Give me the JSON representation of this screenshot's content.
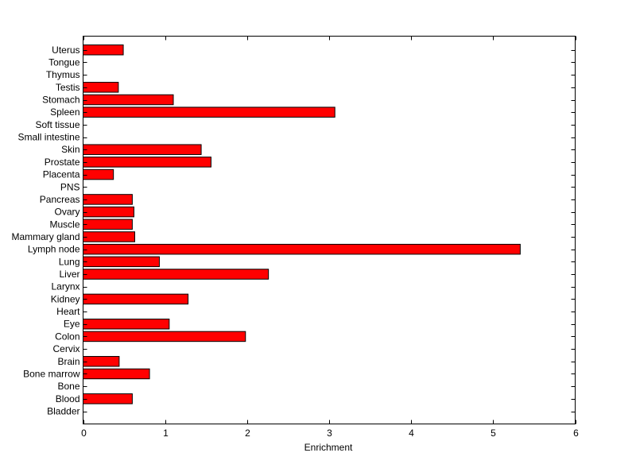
{
  "chart_data": {
    "type": "bar",
    "orientation": "horizontal",
    "categories": [
      "Bladder",
      "Blood",
      "Bone",
      "Bone marrow",
      "Brain",
      "Cervix",
      "Colon",
      "Eye",
      "Heart",
      "Kidney",
      "Larynx",
      "Liver",
      "Lung",
      "Lymph node",
      "Mammary gland",
      "Muscle",
      "Ovary",
      "Pancreas",
      "PNS",
      "Placenta",
      "Prostate",
      "Skin",
      "Small intestine",
      "Soft tissue",
      "Spleen",
      "Stomach",
      "Testis",
      "Thymus",
      "Tongue",
      "Uterus"
    ],
    "values": [
      0,
      0.6,
      0,
      0.81,
      0.44,
      0,
      1.98,
      1.05,
      0,
      1.28,
      0,
      2.26,
      0.93,
      5.33,
      0.63,
      0.6,
      0.62,
      0.6,
      0,
      0.37,
      1.56,
      1.44,
      0,
      0,
      3.07,
      1.1,
      0.43,
      0,
      0,
      0.49
    ],
    "xlabel": "Enrichment",
    "ylabel": "",
    "title": "",
    "xlim": [
      0,
      6
    ],
    "x_ticks": [
      "0",
      "1",
      "2",
      "3",
      "4",
      "5",
      "6"
    ],
    "bar_color": "#ff0000",
    "grid": false,
    "legend": "none"
  }
}
